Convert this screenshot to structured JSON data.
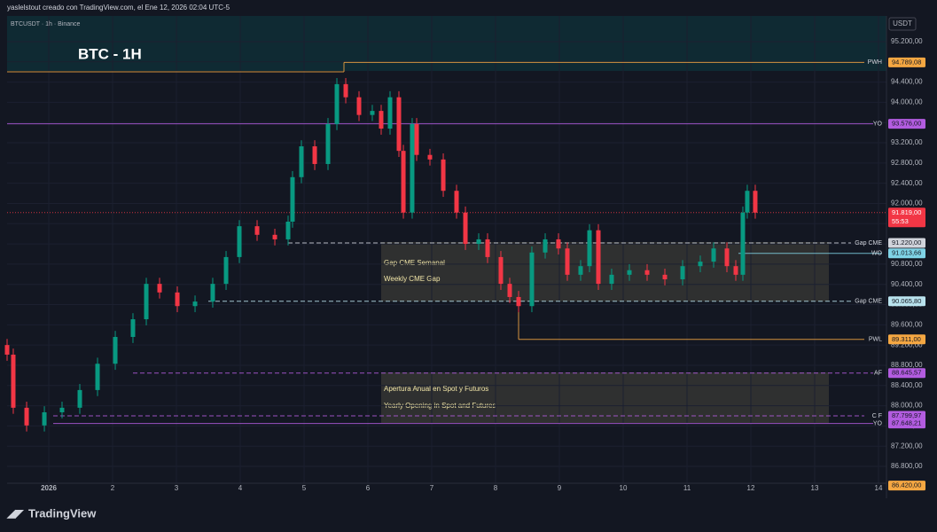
{
  "header": "yaslelstout creado con TradingView.com, el Ene 12, 2026 02:04 UTC-5",
  "symbol": "BTCUSDT · 1h · Binance",
  "currency": "USDT",
  "footer": "TradingView",
  "boxes": [
    {
      "title": "BTC - 1H"
    },
    {
      "lines": [
        "Gap CME Semanal",
        "Weekly CME Gap"
      ]
    },
    {
      "lines": [
        "Apertura Anual en Spot y Futuros",
        "Yearly Opening in Spot and Futures"
      ]
    }
  ],
  "chart_data": {
    "type": "candlestick",
    "x": [
      0.347,
      0.444,
      0.653,
      0.931,
      1.208,
      1.486,
      1.764,
      2.042,
      2.319,
      2.528,
      2.736,
      3.014,
      3.292,
      3.569,
      3.778,
      3.986,
      4.264,
      4.542,
      4.75,
      4.819,
      4.958,
      5.167,
      5.375,
      5.514,
      5.653,
      5.861,
      6.069,
      6.208,
      6.347,
      6.486,
      6.556,
      6.694,
      6.764,
      6.972,
      7.181,
      7.389,
      7.528,
      7.736,
      7.875,
      8.083,
      8.222,
      8.361,
      8.569,
      8.778,
      8.986,
      9.125,
      9.333,
      9.472,
      9.611,
      9.819,
      10.097,
      10.375,
      10.653,
      10.931,
      11.208,
      11.417,
      11.625,
      11.764,
      11.875,
      11.944,
      12.069
    ],
    "open": [
      89200,
      89010,
      87960,
      87610,
      87870,
      87960,
      88310,
      88830,
      89360,
      89710,
      90410,
      90240,
      89970,
      90060,
      90410,
      90940,
      91550,
      91380,
      91290,
      91640,
      92520,
      93130,
      92780,
      93570,
      94360,
      94100,
      93750,
      93830,
      93480,
      94100,
      93040,
      91820,
      93570,
      92960,
      92870,
      92250,
      91820,
      91200,
      91290,
      90940,
      90410,
      90150,
      89970,
      91030,
      91290,
      91110,
      90590,
      90760,
      91470,
      90410,
      90590,
      90680,
      90590,
      90500,
      90760,
      90850,
      91110,
      90760,
      90590,
      91820,
      92250
    ],
    "high": [
      89320,
      89130,
      88080,
      87990,
      88080,
      88430,
      88950,
      89480,
      89830,
      90530,
      90530,
      90360,
      90180,
      90530,
      91060,
      91670,
      91670,
      91500,
      91760,
      92640,
      93250,
      93250,
      93690,
      94480,
      94480,
      94220,
      93950,
      93950,
      94220,
      94220,
      93160,
      93690,
      93690,
      93080,
      92990,
      92370,
      91940,
      91410,
      91410,
      91060,
      90530,
      90270,
      91150,
      91410,
      91410,
      91230,
      90880,
      91590,
      91590,
      90710,
      90800,
      90800,
      90710,
      90880,
      90970,
      91230,
      91230,
      90880,
      91940,
      92370,
      92370
    ],
    "low": [
      88890,
      87840,
      87490,
      87490,
      87750,
      87840,
      88190,
      88710,
      89240,
      89590,
      90120,
      89850,
      89850,
      89940,
      90290,
      90820,
      91260,
      91170,
      91170,
      91520,
      92400,
      92660,
      92660,
      93450,
      93980,
      93630,
      93630,
      93360,
      93360,
      92920,
      91700,
      91700,
      92840,
      92750,
      92130,
      91700,
      91080,
      91080,
      90820,
      90290,
      90030,
      89850,
      89850,
      90910,
      90990,
      90470,
      90470,
      90640,
      90290,
      90290,
      90470,
      90470,
      90380,
      90380,
      90640,
      90730,
      90640,
      90470,
      90470,
      91700,
      91699
    ],
    "close": [
      89010,
      87960,
      87610,
      87870,
      87960,
      88310,
      88830,
      89360,
      89710,
      90410,
      90240,
      89970,
      90060,
      90410,
      90940,
      91550,
      91380,
      91290,
      91640,
      92520,
      93130,
      92780,
      93570,
      94360,
      94100,
      93750,
      93830,
      93480,
      94100,
      93040,
      91820,
      93570,
      92960,
      92870,
      92250,
      91820,
      91200,
      91290,
      90940,
      90410,
      90150,
      89970,
      91030,
      91290,
      91110,
      90590,
      90760,
      91470,
      90410,
      90590,
      90680,
      90590,
      90500,
      90760,
      90850,
      91110,
      90760,
      90590,
      91820,
      92250,
      91819
    ],
    "up_color": "#089981",
    "down_color": "#f23645",
    "xlim": [
      0.347,
      14.125
    ],
    "xticks": [
      {
        "value": 1,
        "label": "2026"
      },
      2,
      3,
      4,
      5,
      6,
      7,
      8,
      9,
      10,
      11,
      12,
      13,
      14
    ],
    "ylim": [
      86467,
      95708
    ],
    "yticks": [
      {
        "value": 86800,
        "label": "86.800,00"
      },
      {
        "value": 87200,
        "label": "87.200,00"
      },
      {
        "value": 87600,
        "label": "87.600,00"
      },
      {
        "value": 88000,
        "label": "88.000,00"
      },
      {
        "value": 88400,
        "label": "88.400,00"
      },
      {
        "value": 88800,
        "label": "88.800,00"
      },
      {
        "value": 89200,
        "label": "89.200,00"
      },
      {
        "value": 89600,
        "label": "89.600,00"
      },
      {
        "value": 90000,
        "label": "90.000,00"
      },
      {
        "value": 90400,
        "label": "90.400,00"
      },
      {
        "value": 90800,
        "label": "90.800,00"
      },
      {
        "value": 91200,
        "label": "91.200,00"
      },
      {
        "value": 91600,
        "label": "91.600,00"
      },
      {
        "value": 92000,
        "label": "92.000,00"
      },
      {
        "value": 92400,
        "label": "92.400,00"
      },
      {
        "value": 92800,
        "label": "92.800,00"
      },
      {
        "value": 93200,
        "label": "93.200,00"
      },
      {
        "value": 93600,
        "label": "93.600,00"
      },
      {
        "value": 94000,
        "label": "94.000,00"
      },
      {
        "value": 94400,
        "label": "94.400,00"
      },
      {
        "value": 94800,
        "label": "94.800,00"
      },
      {
        "value": 95200,
        "label": "95.200,00"
      }
    ],
    "grid": true,
    "levels": [
      {
        "name": "PWH",
        "value": 94789.08,
        "label": "94.789,08",
        "color": "#f5a742"
      },
      {
        "name": "YO",
        "value": 93576,
        "label": "93.576,00",
        "color": "#b35ce0"
      },
      {
        "value": 91819,
        "label": "91.819,00",
        "countdown": "55:53",
        "color": "#f23645"
      },
      {
        "name": "Gap CME",
        "value": 91220,
        "label": "91.220,00",
        "color": "#d1d4dc"
      },
      {
        "name": "WO",
        "value": 91013.66,
        "label": "91.013,66",
        "color": "#7fd3e6"
      },
      {
        "name": "Gap CME",
        "value": 90065.8,
        "label": "90.065,80",
        "color": "#b9e3ee"
      },
      {
        "name": "PWL",
        "value": 89311,
        "label": "89.311,00",
        "color": "#f5a742"
      },
      {
        "name": "AF",
        "value": 88645.57,
        "label": "88.645,57",
        "color": "#b35ce0"
      },
      {
        "name": "C F",
        "value": 87799.97,
        "label": "87.799,97",
        "color": "#b35ce0"
      },
      {
        "name": "YO",
        "value": 87648.21,
        "label": "87.648,21",
        "color": "#b35ce0"
      },
      {
        "value": 86420,
        "label": "86.420,00",
        "color": "#f5a742"
      }
    ]
  }
}
